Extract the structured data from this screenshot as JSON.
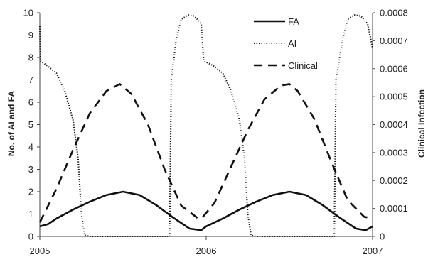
{
  "chart_data": {
    "type": "line",
    "title": "",
    "x_ticks": [
      "2005",
      "2006",
      "2007"
    ],
    "xlim": [
      2005,
      2007
    ],
    "y_left": {
      "label": "No. of AI and FA",
      "lim": [
        0,
        10
      ],
      "ticks": [
        "0",
        "1",
        "2",
        "3",
        "4",
        "5",
        "6",
        "7",
        "8",
        "9",
        "10"
      ]
    },
    "y_right": {
      "label": "Clinical Infection",
      "lim": [
        0,
        0.0008
      ],
      "ticks": [
        "0",
        "0.0001",
        "0.0002",
        "0.0003",
        "0.0004",
        "0.0005",
        "0.0006",
        "0.0007",
        "0.0008"
      ]
    },
    "grid": false,
    "legend_position": "top-right",
    "series": [
      {
        "name": "FA",
        "axis": "left",
        "style": "solid",
        "color": "#111111",
        "points": [
          [
            2005.0,
            0.45
          ],
          [
            2005.05,
            0.55
          ],
          [
            2005.1,
            0.8
          ],
          [
            2005.2,
            1.2
          ],
          [
            2005.3,
            1.55
          ],
          [
            2005.4,
            1.85
          ],
          [
            2005.5,
            2.0
          ],
          [
            2005.6,
            1.85
          ],
          [
            2005.7,
            1.4
          ],
          [
            2005.8,
            0.85
          ],
          [
            2005.9,
            0.35
          ],
          [
            2005.97,
            0.28
          ],
          [
            2006.0,
            0.45
          ],
          [
            2006.1,
            0.8
          ],
          [
            2006.2,
            1.2
          ],
          [
            2006.3,
            1.55
          ],
          [
            2006.4,
            1.85
          ],
          [
            2006.5,
            2.0
          ],
          [
            2006.6,
            1.85
          ],
          [
            2006.7,
            1.4
          ],
          [
            2006.8,
            0.85
          ],
          [
            2006.9,
            0.35
          ],
          [
            2006.96,
            0.28
          ],
          [
            2007.0,
            0.45
          ]
        ]
      },
      {
        "name": "AI",
        "axis": "left",
        "style": "dotted",
        "color": "#111111",
        "points": [
          [
            2005.0,
            9.4
          ],
          [
            2005.003,
            7.85
          ],
          [
            2005.05,
            7.6
          ],
          [
            2005.1,
            7.3
          ],
          [
            2005.15,
            6.5
          ],
          [
            2005.2,
            5.2
          ],
          [
            2005.23,
            3.5
          ],
          [
            2005.25,
            1.0
          ],
          [
            2005.27,
            0.05
          ],
          [
            2005.3,
            0.0
          ],
          [
            2005.78,
            0.0
          ],
          [
            2005.785,
            3.5
          ],
          [
            2005.79,
            7.0
          ],
          [
            2005.82,
            8.8
          ],
          [
            2005.85,
            9.7
          ],
          [
            2005.89,
            9.9
          ],
          [
            2005.93,
            9.85
          ],
          [
            2005.97,
            9.5
          ],
          [
            2005.98,
            8.4
          ],
          [
            2005.985,
            7.85
          ],
          [
            2006.05,
            7.6
          ],
          [
            2006.1,
            7.3
          ],
          [
            2006.15,
            6.5
          ],
          [
            2006.2,
            5.2
          ],
          [
            2006.23,
            3.5
          ],
          [
            2006.25,
            1.0
          ],
          [
            2006.27,
            0.05
          ],
          [
            2006.3,
            0.0
          ],
          [
            2006.77,
            0.0
          ],
          [
            2006.775,
            3.5
          ],
          [
            2006.78,
            7.0
          ],
          [
            2006.82,
            8.8
          ],
          [
            2006.85,
            9.7
          ],
          [
            2006.89,
            9.9
          ],
          [
            2006.93,
            9.85
          ],
          [
            2006.97,
            9.5
          ],
          [
            2006.99,
            8.8
          ],
          [
            2007.0,
            8.4
          ]
        ]
      },
      {
        "name": "Clinical",
        "axis": "right",
        "style": "dashed",
        "color": "#111111",
        "points": [
          [
            2005.0,
            5e-05
          ],
          [
            2005.1,
            0.00017
          ],
          [
            2005.2,
            0.00031
          ],
          [
            2005.3,
            0.00044
          ],
          [
            2005.4,
            0.00052
          ],
          [
            2005.48,
            0.000545
          ],
          [
            2005.55,
            0.00051
          ],
          [
            2005.65,
            0.0004
          ],
          [
            2005.75,
            0.00024
          ],
          [
            2005.85,
            0.00011
          ],
          [
            2005.95,
            6.5e-05
          ],
          [
            2005.98,
            7e-05
          ],
          [
            2006.05,
            0.00012
          ],
          [
            2006.15,
            0.00025
          ],
          [
            2006.25,
            0.00038
          ],
          [
            2006.35,
            0.00049
          ],
          [
            2006.45,
            0.00054
          ],
          [
            2006.5,
            0.000545
          ],
          [
            2006.55,
            0.00052
          ],
          [
            2006.65,
            0.00042
          ],
          [
            2006.75,
            0.00027
          ],
          [
            2006.85,
            0.00013
          ],
          [
            2006.95,
            7e-05
          ],
          [
            2007.0,
            6.5e-05
          ]
        ]
      }
    ]
  }
}
